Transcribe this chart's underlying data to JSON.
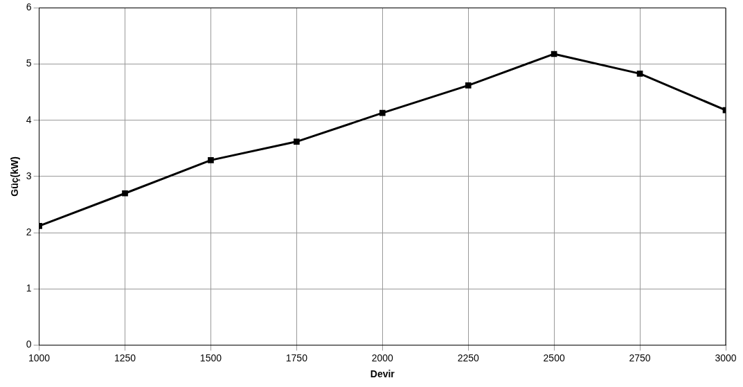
{
  "chart_data": {
    "type": "line",
    "xlabel": "Devir",
    "ylabel": "Güç(kW)",
    "x": [
      1000,
      1250,
      1500,
      1750,
      2000,
      2250,
      2500,
      2750,
      3000
    ],
    "series": [
      {
        "color": "#000000",
        "values": [
          2.12,
          2.7,
          3.29,
          3.62,
          4.13,
          4.62,
          5.18,
          4.83,
          4.18
        ]
      }
    ],
    "xlim": [
      1000,
      3000
    ],
    "xticks": [
      1000,
      1250,
      1500,
      1750,
      2000,
      2250,
      2500,
      2750,
      3000
    ],
    "ylim": [
      0,
      6
    ],
    "yticks": [
      0,
      1,
      2,
      3,
      4,
      5,
      6
    ],
    "grid": true,
    "legend": false,
    "marker": "square",
    "line_style": "solid"
  }
}
